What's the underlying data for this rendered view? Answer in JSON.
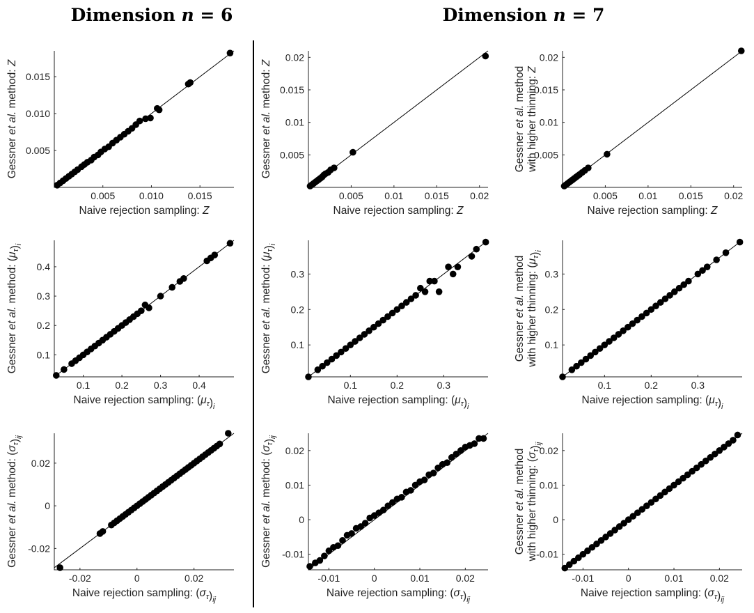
{
  "headers": {
    "n6": {
      "prefix": "Dimension ",
      "var": "n",
      "eq": " = 6"
    },
    "n7": {
      "prefix": "Dimension ",
      "var": "n",
      "eq": " = 7"
    }
  },
  "labels": {
    "y_Z": {
      "lines": [
        [
          {
            "t": "Gessner "
          },
          {
            "t": "et al.",
            "i": true
          },
          {
            "t": " method: "
          },
          {
            "t": "Z",
            "i": true
          }
        ]
      ]
    },
    "y_Z_ht": {
      "lines": [
        [
          {
            "t": "Gessner "
          },
          {
            "t": "et al.",
            "i": true
          },
          {
            "t": " method"
          }
        ],
        [
          {
            "t": "with higher thinning: "
          },
          {
            "t": "Z",
            "i": true
          }
        ]
      ]
    },
    "x_Z": {
      "lines": [
        [
          {
            "t": "Naive rejection sampling: "
          },
          {
            "t": "Z",
            "i": true
          }
        ]
      ]
    },
    "y_mu": {
      "lines": [
        [
          {
            "t": "Gessner "
          },
          {
            "t": "et al.",
            "i": true
          },
          {
            "t": " method: ("
          },
          {
            "t": "μ",
            "i": true
          },
          {
            "t": "τ",
            "sub": true
          },
          {
            "t": ")"
          },
          {
            "t": "i",
            "sub": true
          }
        ]
      ]
    },
    "y_mu_ht": {
      "lines": [
        [
          {
            "t": "Gessner "
          },
          {
            "t": "et al.",
            "i": true
          },
          {
            "t": " method"
          }
        ],
        [
          {
            "t": "with higher thinning: ("
          },
          {
            "t": "μ",
            "i": true
          },
          {
            "t": "τ",
            "sub": true
          },
          {
            "t": ")"
          },
          {
            "t": "i",
            "sub": true
          }
        ]
      ]
    },
    "x_mu": {
      "lines": [
        [
          {
            "t": "Naive rejection sampling: ("
          },
          {
            "t": "μ",
            "i": true
          },
          {
            "t": "τ",
            "sub": true
          },
          {
            "t": ")"
          },
          {
            "t": "i",
            "sub": true
          }
        ]
      ]
    },
    "y_sigma": {
      "lines": [
        [
          {
            "t": "Gessner "
          },
          {
            "t": "et al.",
            "i": true
          },
          {
            "t": " method: ("
          },
          {
            "t": "σ",
            "i": true
          },
          {
            "t": "τ",
            "sub": true
          },
          {
            "t": ")"
          },
          {
            "t": "ij",
            "sub": true
          }
        ]
      ]
    },
    "y_sigma_ht": {
      "lines": [
        [
          {
            "t": "Gessner "
          },
          {
            "t": "et al.",
            "i": true
          },
          {
            "t": " method"
          }
        ],
        [
          {
            "t": "with higher thinning: ("
          },
          {
            "t": "σ",
            "i": true
          },
          {
            "t": "τ",
            "sub": true
          },
          {
            "t": ")"
          },
          {
            "t": "ij",
            "sub": true
          }
        ]
      ]
    },
    "x_sigma": {
      "lines": [
        [
          {
            "t": "Naive rejection sampling: ("
          },
          {
            "t": "σ",
            "i": true
          },
          {
            "t": "τ",
            "sub": true
          },
          {
            "t": ")"
          },
          {
            "t": "ij",
            "sub": true
          }
        ]
      ]
    }
  },
  "chart_data": [
    {
      "id": "n6_Z",
      "type": "scatter",
      "dimension": 6,
      "ylabel_key": "y_Z",
      "xlabel_key": "x_Z",
      "xlim": [
        0,
        0.0185
      ],
      "ylim": [
        0,
        0.0185
      ],
      "xticks": [
        0.005,
        0.01,
        0.015
      ],
      "xtick_labels": [
        "0.005",
        "0.010",
        "0.015"
      ],
      "yticks": [
        0.005,
        0.01,
        0.015
      ],
      "ytick_labels": [
        "0.005",
        "0.010",
        "0.015"
      ],
      "reference_line": "y = x",
      "x": [
        0.0003,
        0.0006,
        0.0009,
        0.0012,
        0.0015,
        0.0018,
        0.0021,
        0.0024,
        0.0028,
        0.0031,
        0.0034,
        0.0038,
        0.0041,
        0.0045,
        0.0048,
        0.0052,
        0.0056,
        0.006,
        0.0064,
        0.0068,
        0.0072,
        0.0076,
        0.008,
        0.0084,
        0.0088,
        0.0094,
        0.0099,
        0.0106,
        0.0108,
        0.0138,
        0.014,
        0.0181
      ],
      "y": [
        0.0003,
        0.0006,
        0.0009,
        0.0012,
        0.0015,
        0.0018,
        0.0021,
        0.0024,
        0.0028,
        0.0031,
        0.0034,
        0.0037,
        0.0041,
        0.0044,
        0.0048,
        0.0052,
        0.0055,
        0.006,
        0.0064,
        0.0068,
        0.0072,
        0.0076,
        0.008,
        0.0085,
        0.009,
        0.0093,
        0.0094,
        0.0107,
        0.0105,
        0.014,
        0.0142,
        0.0182
      ]
    },
    {
      "id": "n7_Z",
      "type": "scatter",
      "dimension": 7,
      "ylabel_key": "y_Z",
      "xlabel_key": "x_Z",
      "xlim": [
        0,
        0.021
      ],
      "ylim": [
        0,
        0.021
      ],
      "xticks": [
        0.005,
        0.01,
        0.015,
        0.02
      ],
      "xtick_labels": [
        "0.005",
        "0.01",
        "0.015",
        "0.02"
      ],
      "yticks": [
        0.005,
        0.01,
        0.015,
        0.02
      ],
      "ytick_labels": [
        "0.005",
        "0.01",
        "0.015",
        "0.02"
      ],
      "reference_line": "y = x",
      "x": [
        0.0002,
        0.0004,
        0.0006,
        0.0008,
        0.001,
        0.0012,
        0.0014,
        0.0016,
        0.0018,
        0.002,
        0.0023,
        0.0026,
        0.003,
        0.0052,
        0.0207
      ],
      "y": [
        0.0002,
        0.0004,
        0.0006,
        0.0008,
        0.001,
        0.0012,
        0.0014,
        0.0016,
        0.0019,
        0.0021,
        0.0023,
        0.0027,
        0.003,
        0.0054,
        0.0202
      ]
    },
    {
      "id": "n7ht_Z",
      "type": "scatter",
      "dimension": 7,
      "ylabel_key": "y_Z_ht",
      "xlabel_key": "x_Z",
      "xlim": [
        0,
        0.021
      ],
      "ylim": [
        0,
        0.021
      ],
      "xticks": [
        0.005,
        0.01,
        0.015,
        0.02
      ],
      "xtick_labels": [
        "0.005",
        "0.01",
        "0.015",
        "0.02"
      ],
      "yticks": [
        0.005,
        0.01,
        0.015,
        0.02
      ],
      "ytick_labels": [
        "0.005",
        "0.01",
        "0.015",
        "0.02"
      ],
      "reference_line": "y = x",
      "x": [
        0.0002,
        0.0004,
        0.0006,
        0.0008,
        0.001,
        0.0012,
        0.0014,
        0.0016,
        0.0018,
        0.002,
        0.0023,
        0.0026,
        0.003,
        0.0052,
        0.0209
      ],
      "y": [
        0.0002,
        0.0004,
        0.0006,
        0.0008,
        0.001,
        0.0012,
        0.0014,
        0.0016,
        0.0018,
        0.002,
        0.0023,
        0.0026,
        0.003,
        0.0051,
        0.021
      ]
    },
    {
      "id": "n6_mu",
      "type": "scatter",
      "dimension": 6,
      "ylabel_key": "y_mu",
      "xlabel_key": "x_mu",
      "xlim": [
        0.025,
        0.49
      ],
      "ylim": [
        0.025,
        0.49
      ],
      "xticks": [
        0.1,
        0.2,
        0.3,
        0.4
      ],
      "xtick_labels": [
        "0.1",
        "0.2",
        "0.3",
        "0.4"
      ],
      "yticks": [
        0.1,
        0.2,
        0.3,
        0.4
      ],
      "ytick_labels": [
        "0.1",
        "0.2",
        "0.3",
        "0.4"
      ],
      "reference_line": "y = x",
      "x": [
        0.03,
        0.05,
        0.07,
        0.08,
        0.09,
        0.1,
        0.11,
        0.12,
        0.13,
        0.14,
        0.15,
        0.16,
        0.17,
        0.18,
        0.19,
        0.2,
        0.21,
        0.22,
        0.23,
        0.24,
        0.25,
        0.26,
        0.27,
        0.3,
        0.33,
        0.35,
        0.36,
        0.42,
        0.43,
        0.44,
        0.48
      ],
      "y": [
        0.03,
        0.05,
        0.07,
        0.08,
        0.09,
        0.1,
        0.11,
        0.12,
        0.13,
        0.14,
        0.15,
        0.16,
        0.17,
        0.18,
        0.19,
        0.2,
        0.21,
        0.22,
        0.23,
        0.24,
        0.25,
        0.27,
        0.26,
        0.3,
        0.33,
        0.35,
        0.36,
        0.42,
        0.43,
        0.44,
        0.48
      ]
    },
    {
      "id": "n7_mu",
      "type": "scatter",
      "dimension": 7,
      "ylabel_key": "y_mu",
      "xlabel_key": "x_mu",
      "xlim": [
        0.01,
        0.395
      ],
      "ylim": [
        0.01,
        0.395
      ],
      "xticks": [
        0.1,
        0.2,
        0.3
      ],
      "xtick_labels": [
        "0.1",
        "0.2",
        "0.3"
      ],
      "yticks": [
        0.1,
        0.2,
        0.3
      ],
      "ytick_labels": [
        "0.1",
        "0.2",
        "0.3"
      ],
      "reference_line": "y = x",
      "x": [
        0.01,
        0.03,
        0.04,
        0.05,
        0.06,
        0.07,
        0.08,
        0.09,
        0.1,
        0.11,
        0.12,
        0.13,
        0.14,
        0.15,
        0.16,
        0.17,
        0.18,
        0.19,
        0.2,
        0.21,
        0.22,
        0.23,
        0.24,
        0.25,
        0.26,
        0.27,
        0.28,
        0.29,
        0.31,
        0.32,
        0.33,
        0.36,
        0.37,
        0.39
      ],
      "y": [
        0.01,
        0.03,
        0.04,
        0.05,
        0.06,
        0.07,
        0.08,
        0.09,
        0.1,
        0.11,
        0.12,
        0.13,
        0.14,
        0.15,
        0.16,
        0.17,
        0.18,
        0.19,
        0.2,
        0.21,
        0.22,
        0.23,
        0.24,
        0.26,
        0.25,
        0.28,
        0.28,
        0.25,
        0.32,
        0.3,
        0.32,
        0.35,
        0.37,
        0.39
      ]
    },
    {
      "id": "n7ht_mu",
      "type": "scatter",
      "dimension": 7,
      "ylabel_key": "y_mu_ht",
      "xlabel_key": "x_mu",
      "xlim": [
        0.01,
        0.395
      ],
      "ylim": [
        0.01,
        0.395
      ],
      "xticks": [
        0.1,
        0.2,
        0.3
      ],
      "xtick_labels": [
        "0.1",
        "0.2",
        "0.3"
      ],
      "yticks": [
        0.1,
        0.2,
        0.3
      ],
      "ytick_labels": [
        "0.1",
        "0.2",
        "0.3"
      ],
      "reference_line": "y = x",
      "x": [
        0.01,
        0.03,
        0.04,
        0.05,
        0.06,
        0.07,
        0.08,
        0.09,
        0.1,
        0.11,
        0.12,
        0.13,
        0.14,
        0.15,
        0.16,
        0.17,
        0.18,
        0.19,
        0.2,
        0.21,
        0.22,
        0.23,
        0.24,
        0.25,
        0.26,
        0.27,
        0.28,
        0.3,
        0.31,
        0.32,
        0.34,
        0.36,
        0.39
      ],
      "y": [
        0.01,
        0.03,
        0.04,
        0.05,
        0.06,
        0.07,
        0.08,
        0.09,
        0.1,
        0.11,
        0.12,
        0.13,
        0.14,
        0.15,
        0.16,
        0.17,
        0.18,
        0.19,
        0.2,
        0.21,
        0.22,
        0.23,
        0.24,
        0.25,
        0.26,
        0.27,
        0.28,
        0.3,
        0.31,
        0.32,
        0.34,
        0.36,
        0.39
      ]
    },
    {
      "id": "n6_sigma",
      "type": "scatter",
      "dimension": 6,
      "ylabel_key": "y_sigma",
      "xlabel_key": "x_sigma",
      "xlim": [
        -0.029,
        0.034
      ],
      "ylim": [
        -0.03,
        0.034
      ],
      "xticks": [
        -0.02,
        0,
        0.02
      ],
      "xtick_labels": [
        "-0.02",
        "0",
        "0.02"
      ],
      "yticks": [
        -0.02,
        0,
        0.02
      ],
      "ytick_labels": [
        "-0.02",
        "0",
        "0.02"
      ],
      "reference_line": "y = x",
      "x": [
        -0.027,
        -0.013,
        -0.012,
        -0.009,
        -0.008,
        -0.007,
        -0.006,
        -0.005,
        -0.004,
        -0.003,
        -0.002,
        -0.001,
        0,
        0.001,
        0.002,
        0.003,
        0.004,
        0.005,
        0.006,
        0.007,
        0.008,
        0.009,
        0.01,
        0.011,
        0.012,
        0.013,
        0.014,
        0.015,
        0.016,
        0.017,
        0.018,
        0.019,
        0.02,
        0.021,
        0.022,
        0.023,
        0.024,
        0.025,
        0.026,
        0.027,
        0.028,
        0.029,
        0.032
      ],
      "y": [
        -0.029,
        -0.013,
        -0.012,
        -0.009,
        -0.008,
        -0.007,
        -0.006,
        -0.005,
        -0.004,
        -0.003,
        -0.002,
        -0.001,
        0,
        0.001,
        0.002,
        0.003,
        0.004,
        0.005,
        0.006,
        0.007,
        0.008,
        0.009,
        0.01,
        0.011,
        0.012,
        0.013,
        0.014,
        0.015,
        0.016,
        0.017,
        0.018,
        0.019,
        0.02,
        0.021,
        0.022,
        0.023,
        0.024,
        0.025,
        0.026,
        0.027,
        0.028,
        0.029,
        0.034
      ]
    },
    {
      "id": "n7_sigma",
      "type": "scatter",
      "dimension": 7,
      "ylabel_key": "y_sigma",
      "xlabel_key": "x_sigma",
      "xlim": [
        -0.0145,
        0.025
      ],
      "ylim": [
        -0.0145,
        0.025
      ],
      "xticks": [
        -0.01,
        0,
        0.01,
        0.02
      ],
      "xtick_labels": [
        "-0.01",
        "0",
        "0.01",
        "0.02"
      ],
      "yticks": [
        -0.01,
        0,
        0.01,
        0.02
      ],
      "ytick_labels": [
        "-0.01",
        "0",
        "0.01",
        "0.02"
      ],
      "reference_line": "y = x",
      "x": [
        -0.0142,
        -0.013,
        -0.012,
        -0.011,
        -0.01,
        -0.009,
        -0.008,
        -0.007,
        -0.006,
        -0.005,
        -0.004,
        -0.003,
        -0.002,
        -0.001,
        0,
        0.001,
        0.002,
        0.003,
        0.004,
        0.005,
        0.006,
        0.007,
        0.008,
        0.009,
        0.01,
        0.011,
        0.012,
        0.013,
        0.014,
        0.015,
        0.016,
        0.017,
        0.018,
        0.019,
        0.02,
        0.021,
        0.022,
        0.023,
        0.024
      ],
      "y": [
        -0.0135,
        -0.0125,
        -0.0118,
        -0.0105,
        -0.009,
        -0.008,
        -0.0075,
        -0.006,
        -0.0045,
        -0.004,
        -0.0025,
        -0.002,
        -0.001,
        0.0005,
        0.0012,
        0.002,
        0.0028,
        0.004,
        0.005,
        0.006,
        0.0065,
        0.008,
        0.0085,
        0.01,
        0.011,
        0.0115,
        0.013,
        0.0135,
        0.015,
        0.016,
        0.0165,
        0.018,
        0.019,
        0.02,
        0.021,
        0.0215,
        0.022,
        0.0235,
        0.0235
      ]
    },
    {
      "id": "n7ht_sigma",
      "type": "scatter",
      "dimension": 7,
      "ylabel_key": "y_sigma_ht",
      "xlabel_key": "x_sigma",
      "xlim": [
        -0.0145,
        0.025
      ],
      "ylim": [
        -0.0145,
        0.025
      ],
      "xticks": [
        -0.01,
        0,
        0.01,
        0.02
      ],
      "xtick_labels": [
        "-0.01",
        "0",
        "0.01",
        "0.02"
      ],
      "yticks": [
        -0.01,
        0,
        0.01,
        0.02
      ],
      "ytick_labels": [
        "-0.01",
        "0",
        "0.01",
        "0.02"
      ],
      "reference_line": "y = x",
      "x": [
        -0.014,
        -0.013,
        -0.012,
        -0.011,
        -0.01,
        -0.009,
        -0.008,
        -0.007,
        -0.006,
        -0.005,
        -0.004,
        -0.003,
        -0.002,
        -0.001,
        0,
        0.001,
        0.002,
        0.003,
        0.004,
        0.005,
        0.006,
        0.007,
        0.008,
        0.009,
        0.01,
        0.011,
        0.012,
        0.013,
        0.014,
        0.015,
        0.016,
        0.017,
        0.018,
        0.019,
        0.02,
        0.021,
        0.022,
        0.023,
        0.024
      ],
      "y": [
        -0.014,
        -0.013,
        -0.012,
        -0.011,
        -0.01,
        -0.009,
        -0.008,
        -0.007,
        -0.006,
        -0.005,
        -0.004,
        -0.003,
        -0.002,
        -0.001,
        0,
        0.001,
        0.002,
        0.003,
        0.004,
        0.005,
        0.006,
        0.007,
        0.008,
        0.009,
        0.01,
        0.011,
        0.012,
        0.013,
        0.014,
        0.015,
        0.016,
        0.017,
        0.018,
        0.019,
        0.02,
        0.021,
        0.022,
        0.023,
        0.0245
      ]
    }
  ]
}
